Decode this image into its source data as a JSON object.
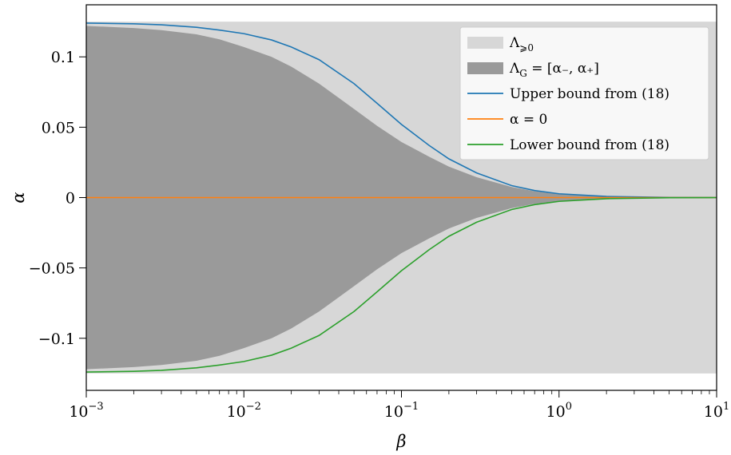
{
  "chart_data": {
    "type": "area",
    "x_scale": "log",
    "xlim": [
      0.001,
      10
    ],
    "ylim": [
      -0.137,
      0.137
    ],
    "xlabel": "β",
    "ylabel": "α",
    "x_ticks": [
      {
        "value": 0.001,
        "base": "10",
        "exp": "−3"
      },
      {
        "value": 0.01,
        "base": "10",
        "exp": "−2"
      },
      {
        "value": 0.1,
        "base": "10",
        "exp": "−1"
      },
      {
        "value": 1,
        "base": "10",
        "exp": "0"
      },
      {
        "value": 10,
        "base": "10",
        "exp": "1"
      }
    ],
    "y_ticks": [
      {
        "value": 0.1,
        "label": "0.1"
      },
      {
        "value": 0.05,
        "label": "0.05"
      },
      {
        "value": 0,
        "label": "0"
      },
      {
        "value": -0.05,
        "label": "−0.05"
      },
      {
        "value": -0.1,
        "label": "−0.1"
      }
    ],
    "grid": false,
    "legend_position": "top-right",
    "legend": [
      {
        "key": "lambda_geq0",
        "text": "Λ",
        "sub": "⩾0",
        "text_after": ""
      },
      {
        "key": "lambda_g",
        "text": "Λ",
        "sub": "G",
        "text_after": " = [α₋, α₊]"
      },
      {
        "key": "upper",
        "text": "Upper bound from (18)",
        "sub": "",
        "text_after": ""
      },
      {
        "key": "zero",
        "text": "α = 0",
        "sub": "",
        "text_after": ""
      },
      {
        "key": "lower",
        "text": "Lower bound from (18)",
        "sub": "",
        "text_after": ""
      }
    ],
    "colors": {
      "lambda_geq0": "#d7d7d7",
      "lambda_g": "#9a9a9a",
      "upper": "#1f77b4",
      "zero": "#ff7f0e",
      "lower": "#2ca02c"
    },
    "lambda_geq0_band": {
      "x": [
        0.001,
        10
      ],
      "lower": [
        -0.125,
        -0.125
      ],
      "upper": [
        0.125,
        0.125
      ]
    },
    "series": [
      {
        "key": "lambda_g",
        "x": [
          0.001,
          0.002,
          0.003,
          0.005,
          0.007,
          0.01,
          0.015,
          0.02,
          0.03,
          0.05,
          0.07,
          0.1,
          0.15,
          0.2,
          0.3,
          0.5,
          0.7,
          1,
          2,
          5,
          10
        ],
        "upper": [
          0.122,
          0.1205,
          0.119,
          0.116,
          0.1125,
          0.107,
          0.1,
          0.093,
          0.081,
          0.063,
          0.051,
          0.0395,
          0.029,
          0.022,
          0.0145,
          0.0075,
          0.0045,
          0.0025,
          0.0007,
          0.0001,
          0.0
        ],
        "lower": [
          -0.122,
          -0.1205,
          -0.119,
          -0.116,
          -0.1125,
          -0.107,
          -0.1,
          -0.093,
          -0.081,
          -0.063,
          -0.051,
          -0.0395,
          -0.029,
          -0.022,
          -0.0145,
          -0.0075,
          -0.0045,
          -0.0025,
          -0.0007,
          -0.0001,
          0.0
        ]
      },
      {
        "key": "upper",
        "x": [
          0.001,
          0.002,
          0.003,
          0.005,
          0.007,
          0.01,
          0.015,
          0.02,
          0.03,
          0.05,
          0.07,
          0.1,
          0.15,
          0.2,
          0.3,
          0.5,
          0.7,
          1,
          2,
          5,
          10
        ],
        "y": [
          0.124,
          0.1235,
          0.1228,
          0.121,
          0.119,
          0.1165,
          0.112,
          0.107,
          0.098,
          0.081,
          0.067,
          0.052,
          0.037,
          0.0275,
          0.0175,
          0.0085,
          0.005,
          0.0027,
          0.0008,
          0.0001,
          0.0
        ]
      },
      {
        "key": "zero",
        "x": [
          0.001,
          10
        ],
        "y": [
          0,
          0
        ]
      },
      {
        "key": "lower",
        "x": [
          0.001,
          0.002,
          0.003,
          0.005,
          0.007,
          0.01,
          0.015,
          0.02,
          0.03,
          0.05,
          0.07,
          0.1,
          0.15,
          0.2,
          0.3,
          0.5,
          0.7,
          1,
          2,
          5,
          10
        ],
        "y": [
          -0.124,
          -0.1235,
          -0.1228,
          -0.121,
          -0.119,
          -0.1165,
          -0.112,
          -0.107,
          -0.098,
          -0.081,
          -0.067,
          -0.052,
          -0.037,
          -0.0275,
          -0.0175,
          -0.0085,
          -0.005,
          -0.0027,
          -0.0008,
          -0.0001,
          0.0
        ]
      }
    ]
  }
}
